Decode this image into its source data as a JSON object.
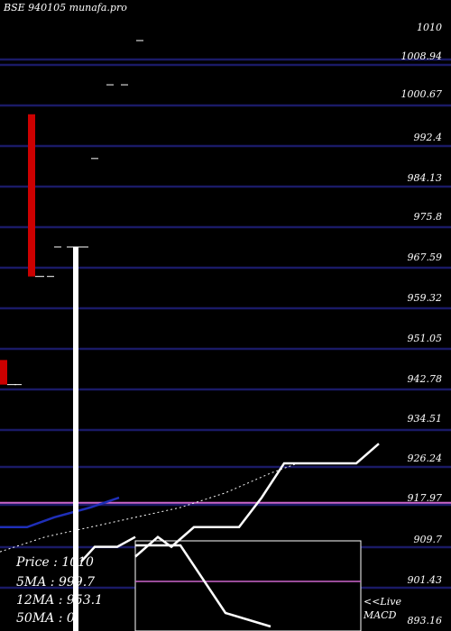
{
  "title": "BSE 940105 munafa.pro",
  "legend": {
    "price": "Price   : 1010",
    "ma5": "5MA : 999.7",
    "ma12": "12MA : 953.1",
    "ma50": "50MA : 0"
  },
  "macd_label": {
    "line1": "<<Live",
    "line2": "MACD"
  },
  "colors": {
    "background": "#000000",
    "gridline": "#1a1a66",
    "bearish_candle": "#cc0000",
    "bullish_candle": "#ffffff",
    "ma5": "#ffffff",
    "ma12": "#ffffff",
    "ma_blue": "#1f2fb8",
    "highlight_line": "#cc66cc",
    "macd_line": "#ffffff",
    "macd_signal": "#cc66cc"
  },
  "chart_data": {
    "type": "candlestick",
    "ylim": [
      893.16,
      1010
    ],
    "y_tick_labels": [
      "1010",
      "1008.94",
      "1000.67",
      "992.4",
      "984.13",
      "975.8",
      "967.59",
      "959.32",
      "951.05",
      "942.78",
      "934.51",
      "926.24",
      "917.97",
      "909.7",
      "901.43",
      "893.16"
    ],
    "highlight_level": 917.97,
    "candles": [
      {
        "open": 945,
        "high": 945,
        "low": 940,
        "close": 940,
        "color": "red"
      },
      {
        "open": 940,
        "high": 940,
        "low": 940,
        "close": 940,
        "color": "flat"
      },
      {
        "open": 995,
        "high": 995,
        "low": 962,
        "close": 962,
        "color": "red"
      },
      {
        "open": 962,
        "high": 969,
        "low": 962,
        "close": 962,
        "color": "flat"
      },
      {
        "open": 968,
        "high": 968,
        "low": 968,
        "close": 968,
        "color": "flat"
      },
      {
        "open": 880,
        "high": 968,
        "low": 880,
        "close": 968,
        "color": "white"
      },
      {
        "open": 968,
        "high": 968,
        "low": 968,
        "close": 968,
        "color": "flat"
      },
      {
        "open": 986,
        "high": 986,
        "low": 986,
        "close": 986,
        "color": "flat"
      },
      {
        "open": 1001,
        "high": 1001,
        "low": 1001,
        "close": 1001,
        "color": "flat"
      },
      {
        "open": 1001,
        "high": 1001,
        "low": 1001,
        "close": 1001,
        "color": "flat"
      },
      {
        "open": 1010,
        "high": 1010,
        "low": 1010,
        "close": 1010,
        "color": "flat"
      }
    ],
    "ma_lines": [
      {
        "name": "5MA",
        "style": "solid",
        "points": [
          [
            150,
            907
          ],
          [
            175,
            911
          ],
          [
            190,
            909
          ],
          [
            215,
            913
          ],
          [
            265,
            913
          ],
          [
            290,
            919
          ],
          [
            315,
            926
          ],
          [
            395,
            926
          ],
          [
            420,
            930
          ]
        ]
      },
      {
        "name": "12MA",
        "style": "dotted",
        "points": [
          [
            0,
            908
          ],
          [
            50,
            911
          ],
          [
            100,
            913
          ],
          [
            150,
            915
          ],
          [
            200,
            917
          ],
          [
            250,
            920
          ],
          [
            300,
            924
          ],
          [
            330,
            926
          ]
        ]
      },
      {
        "name": "blue",
        "style": "solid",
        "points": [
          [
            0,
            913
          ],
          [
            30,
            913
          ],
          [
            60,
            915
          ],
          [
            100,
            917
          ],
          [
            132,
            919
          ]
        ]
      },
      {
        "name": "white-lower",
        "style": "solid",
        "points": [
          [
            90,
            906
          ],
          [
            105,
            909
          ],
          [
            130,
            909
          ],
          [
            150,
            911
          ]
        ]
      }
    ],
    "macd": {
      "line": [
        [
          150,
          0.95
        ],
        [
          200,
          0.95
        ],
        [
          250,
          0.2
        ],
        [
          300,
          0.05
        ]
      ],
      "signal_level": 0.55
    }
  }
}
